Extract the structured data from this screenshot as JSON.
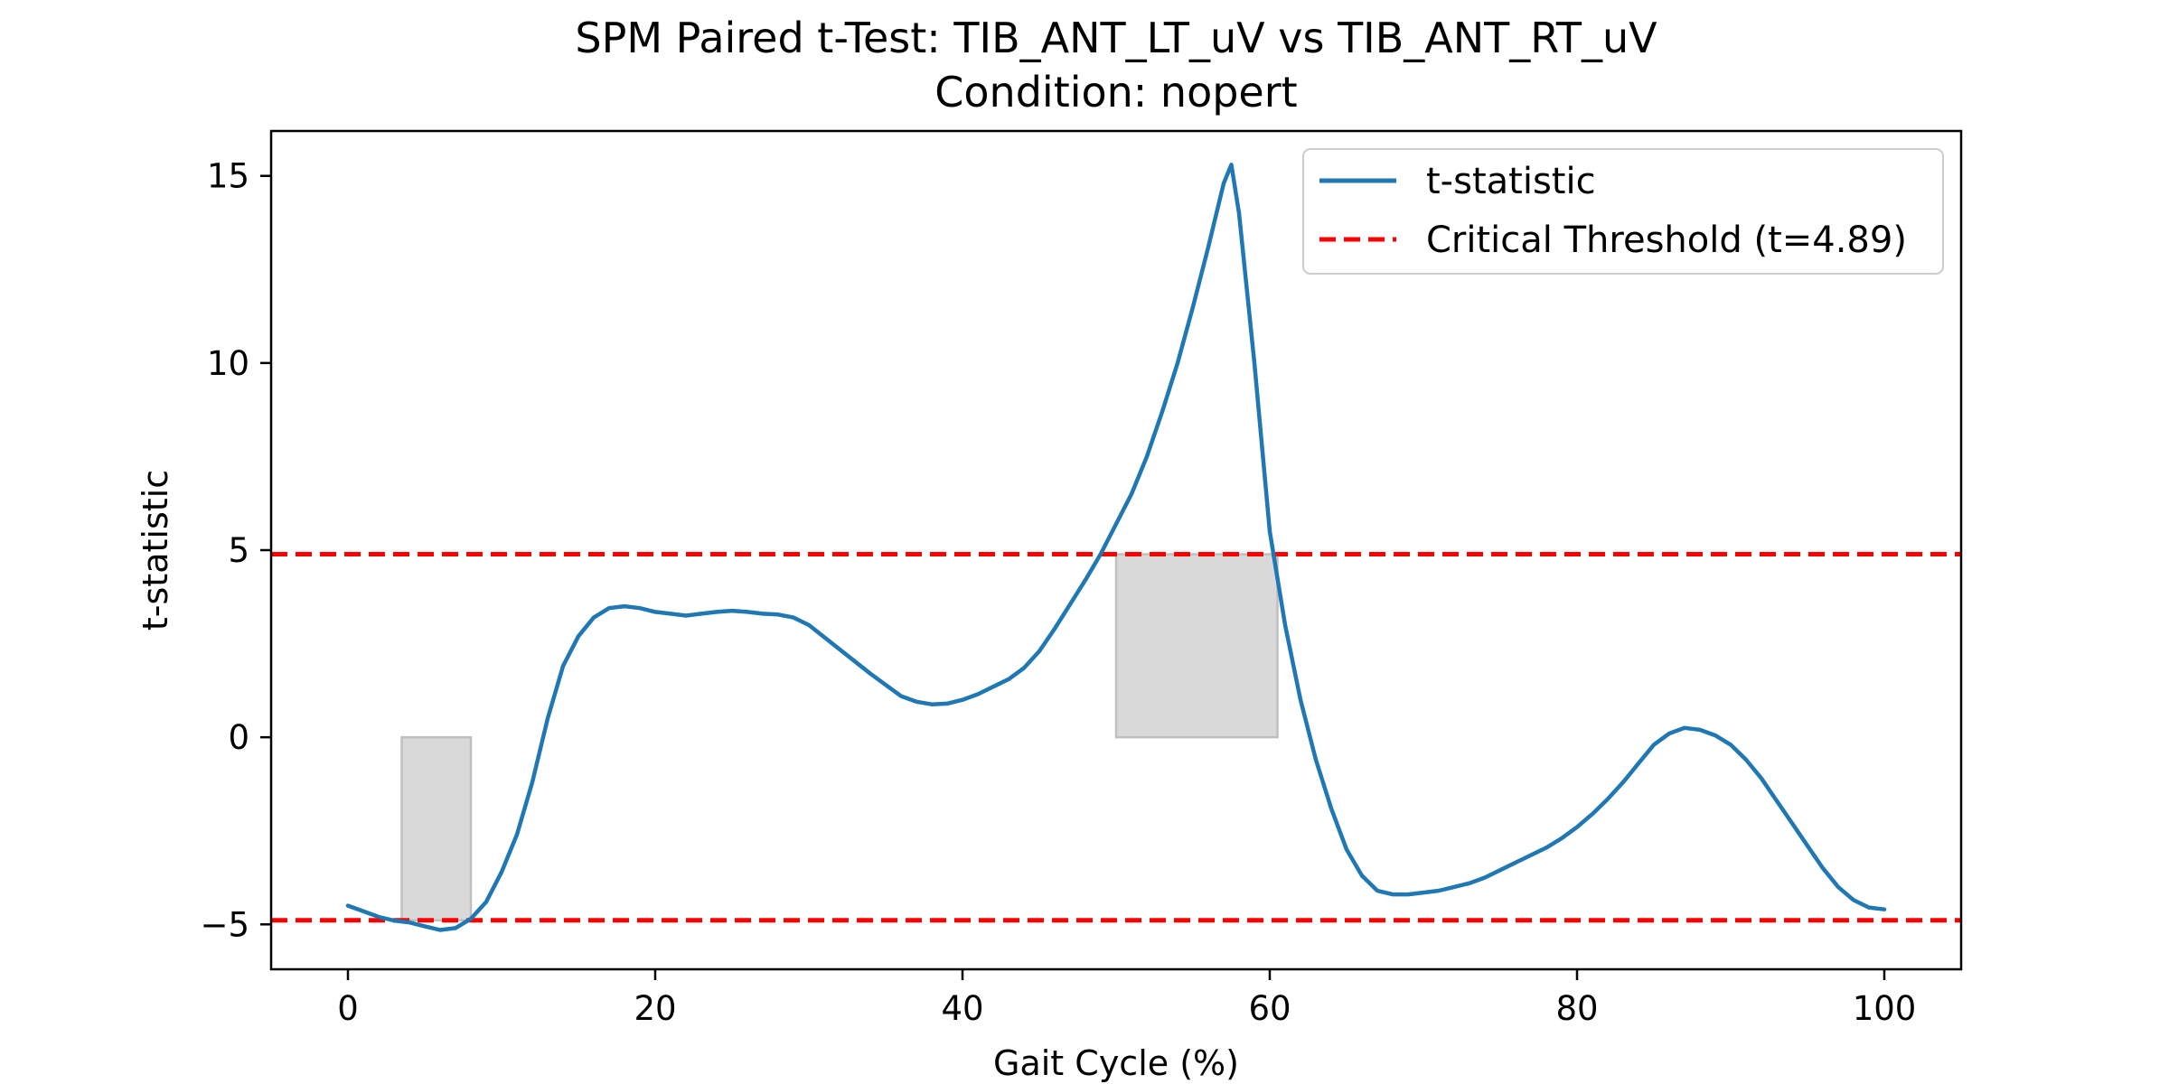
{
  "chart_data": {
    "type": "line",
    "title": "SPM Paired t-Test: TIB_ANT_LT_uV vs TIB_ANT_RT_uV",
    "subtitle": "Condition: nopert",
    "xlabel": "Gait Cycle (%)",
    "ylabel": "t-statistic",
    "xlim": [
      -5,
      105
    ],
    "ylim": [
      -6.2,
      16.2
    ],
    "xticks": [
      0,
      20,
      40,
      60,
      80,
      100
    ],
    "xtick_labels": [
      "0",
      "20",
      "40",
      "60",
      "80",
      "100"
    ],
    "yticks": [
      -5,
      0,
      5,
      10,
      15
    ],
    "ytick_labels": [
      "−5",
      "0",
      "5",
      "10",
      "15"
    ],
    "grid": false,
    "legend_position": "top-right",
    "series": [
      {
        "name": "t-statistic",
        "color": "#1f77b4",
        "x": [
          0,
          1,
          2,
          3,
          4,
          5,
          6,
          7,
          8,
          9,
          10,
          11,
          12,
          13,
          14,
          15,
          16,
          17,
          18,
          19,
          20,
          21,
          22,
          23,
          24,
          25,
          26,
          27,
          28,
          29,
          30,
          32,
          34,
          36,
          37,
          38,
          39,
          40,
          41,
          42,
          43,
          44,
          45,
          46,
          47,
          48,
          49,
          50,
          51,
          52,
          53,
          54,
          55,
          56,
          57,
          57.5,
          58,
          58.5,
          59,
          60,
          61,
          62,
          63,
          64,
          65,
          66,
          67,
          68,
          69,
          70,
          71,
          72,
          73,
          74,
          75,
          76,
          77,
          78,
          79,
          80,
          81,
          82,
          83,
          84,
          85,
          86,
          87,
          88,
          89,
          90,
          91,
          92,
          93,
          94,
          95,
          96,
          97,
          98,
          99,
          100
        ],
        "y": [
          -4.5,
          -4.65,
          -4.8,
          -4.9,
          -4.95,
          -5.05,
          -5.15,
          -5.1,
          -4.85,
          -4.4,
          -3.6,
          -2.6,
          -1.2,
          0.5,
          1.9,
          2.7,
          3.2,
          3.45,
          3.5,
          3.45,
          3.35,
          3.3,
          3.25,
          3.3,
          3.35,
          3.38,
          3.35,
          3.3,
          3.28,
          3.2,
          3.0,
          2.35,
          1.7,
          1.1,
          0.95,
          0.88,
          0.9,
          1.0,
          1.15,
          1.35,
          1.55,
          1.85,
          2.3,
          2.9,
          3.55,
          4.2,
          4.9,
          5.7,
          6.5,
          7.5,
          8.7,
          10.0,
          11.5,
          13.1,
          14.8,
          15.3,
          14.0,
          12.0,
          10.0,
          5.5,
          3.0,
          1.0,
          -0.6,
          -1.9,
          -3.0,
          -3.7,
          -4.1,
          -4.2,
          -4.2,
          -4.15,
          -4.1,
          -4.0,
          -3.9,
          -3.75,
          -3.55,
          -3.35,
          -3.15,
          -2.95,
          -2.7,
          -2.4,
          -2.05,
          -1.65,
          -1.2,
          -0.7,
          -0.2,
          0.1,
          0.25,
          0.2,
          0.05,
          -0.2,
          -0.6,
          -1.1,
          -1.7,
          -2.3,
          -2.9,
          -3.5,
          -4.0,
          -4.35,
          -4.55,
          -4.6
        ]
      },
      {
        "name": "Critical Threshold (t=4.89)",
        "color": "#ff0000",
        "dashed": true,
        "values": [
          4.89,
          -4.89
        ]
      }
    ],
    "clusters": [
      {
        "x_start": 3.5,
        "x_end": 8.0,
        "y_from": 0,
        "y_to": -4.89,
        "color": "#d9d9d9"
      },
      {
        "x_start": 50.0,
        "x_end": 60.5,
        "y_from": 0,
        "y_to": 4.89,
        "color": "#d9d9d9"
      }
    ]
  }
}
